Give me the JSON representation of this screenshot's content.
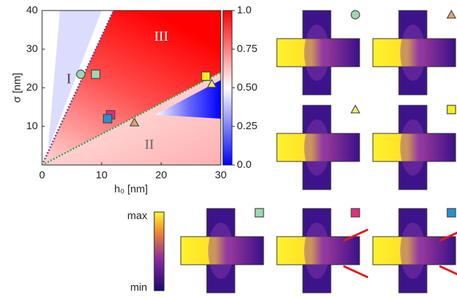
{
  "chart_data": {
    "type": "heatmap",
    "xlabel": "h₀ [nm]",
    "ylabel": "σ [nm]",
    "xlim": [
      0,
      30
    ],
    "ylim": [
      0,
      40
    ],
    "xticks": [
      0,
      10,
      20,
      30
    ],
    "yticks": [
      10,
      20,
      30,
      40
    ],
    "clim": [
      0,
      1
    ],
    "cticks": [
      {
        "value": 0,
        "label": "0.0"
      },
      0.25,
      {
        "value": 0.5,
        "label": "0.50"
      },
      0.75,
      {
        "value": 1,
        "label": "1.0"
      }
    ],
    "regions": [
      {
        "text": "I",
        "x": 4.5,
        "y": 22
      },
      {
        "text": "II",
        "x": 18,
        "y": 5
      },
      {
        "text": "III",
        "x": 20,
        "y": 33
      }
    ],
    "lines": [
      {
        "x": [
          0,
          12
        ],
        "y": [
          0,
          40
        ],
        "color": "#5b3e9a"
      },
      {
        "x": [
          0,
          30
        ],
        "y": [
          0,
          24
        ],
        "color": "#2fa04a"
      }
    ],
    "markers": [
      {
        "x": 6.5,
        "y": 23.5,
        "shape": "circle",
        "color": "#9fd6b2"
      },
      {
        "x": 9,
        "y": 23.5,
        "shape": "square",
        "color": "#9fd6b2"
      },
      {
        "x": 11.5,
        "y": 13,
        "shape": "square",
        "color": "#e0307f"
      },
      {
        "x": 11,
        "y": 12,
        "shape": "square",
        "color": "#2a8fd0"
      },
      {
        "x": 15.5,
        "y": 11,
        "shape": "triangle",
        "color": "#e3a46a"
      },
      {
        "x": 27.5,
        "y": 23,
        "shape": "square",
        "color": "#f5ee1a"
      },
      {
        "x": 28.5,
        "y": 21,
        "shape": "triangle",
        "color": "#eeea6a"
      }
    ],
    "field_scale": {
      "max": "max",
      "min": "min"
    }
  }
}
